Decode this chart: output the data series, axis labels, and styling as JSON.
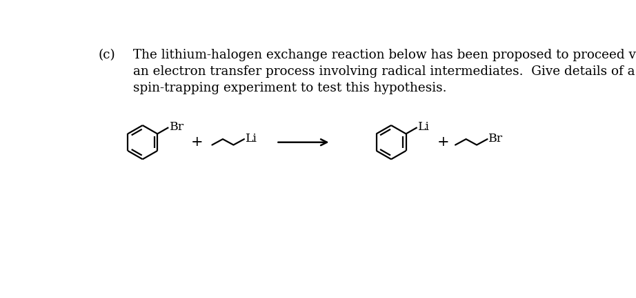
{
  "background_color": "#ffffff",
  "text_color": "#000000",
  "label_c": "(c)",
  "line1": "The lithium-halogen exchange reaction below has been proposed to proceed via",
  "line2": "an electron transfer process involving radical intermediates.  Give details of a",
  "line3": "spin-trapping experiment to test this hypothesis.",
  "font_size_text": 13.2,
  "font_size_chem": 12.5,
  "lw": 1.6
}
